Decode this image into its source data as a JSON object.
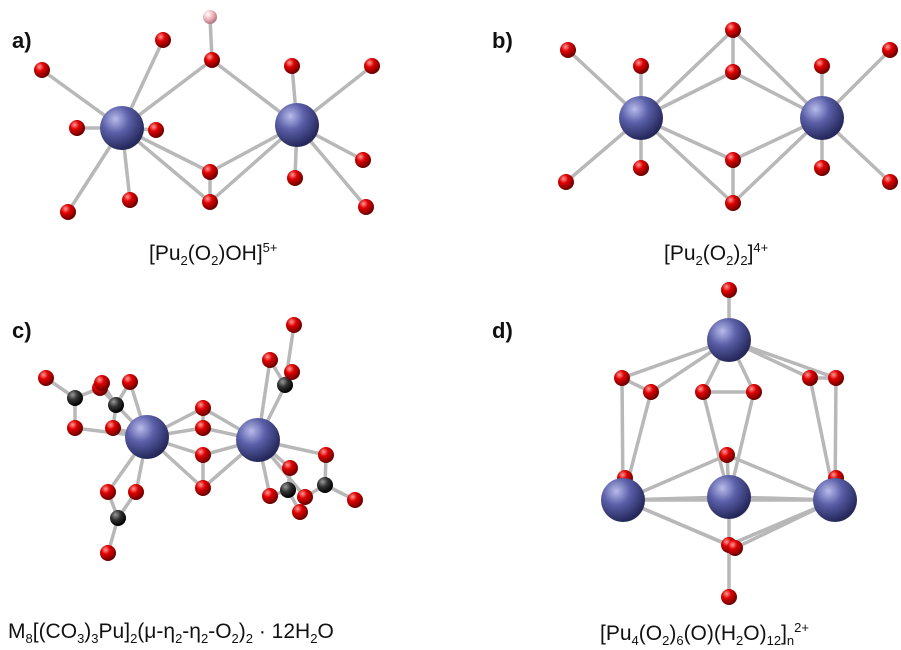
{
  "panels": [
    {
      "label": "a)",
      "caption": {
        "parts": [
          "[Pu",
          "2",
          "(O",
          "2",
          ")OH]",
          "5+"
        ]
      },
      "atoms": {
        "pu": "Pu",
        "o": "O",
        "h": "H"
      }
    },
    {
      "label": "b)",
      "caption": {
        "parts": [
          "[Pu",
          "2",
          "(O",
          "2",
          ")",
          "2",
          "]",
          "4+"
        ]
      },
      "atoms": {
        "pu": "Pu",
        "o": "O"
      }
    },
    {
      "label": "c)",
      "caption": {
        "parts": [
          "M",
          "8",
          "[(CO",
          "3",
          ")",
          "3",
          "Pu]",
          "2",
          "(μ-η",
          "2",
          "-η",
          "2",
          "-O",
          "2",
          ")",
          "2",
          " · 12H",
          "2",
          "O"
        ]
      },
      "atoms": {
        "pu": "Pu",
        "o": "O",
        "c": "C"
      }
    },
    {
      "label": "d)",
      "caption": {
        "parts": [
          "[Pu",
          "4",
          "(O",
          "2",
          ")",
          "6",
          "(O)(H",
          "2",
          "O)",
          "12",
          "]",
          "n",
          "2+"
        ]
      },
      "atoms": {
        "pu": "Pu",
        "o": "O"
      }
    }
  ],
  "colors": {
    "pu": "#5a5fa8",
    "o": "#e00000",
    "h": "#f4b8c0",
    "c": "#333333",
    "bond": "#b8b8b8"
  }
}
